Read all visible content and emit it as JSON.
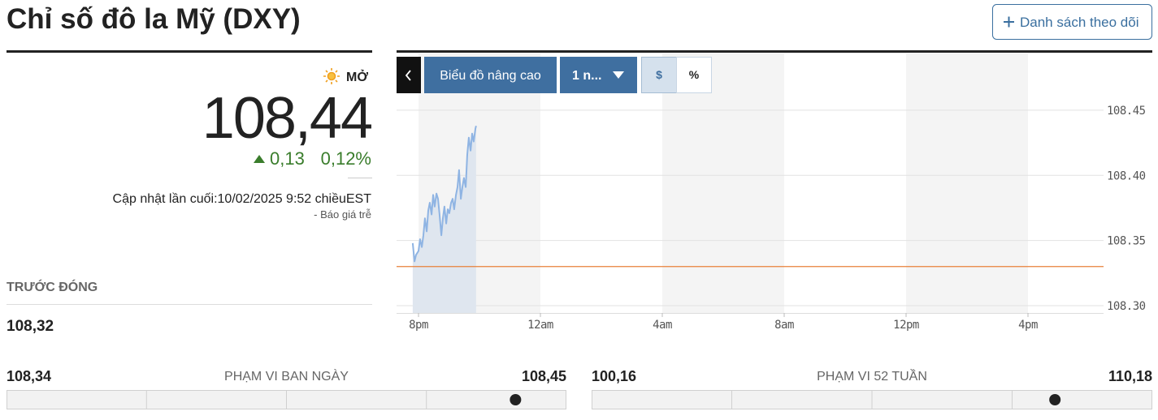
{
  "header": {
    "title": "Chỉ số đô la Mỹ (DXY)",
    "watchlist_button": "Danh sách theo dõi"
  },
  "quote": {
    "status": "MỞ",
    "price": {
      "value": 108.44,
      "label": "108,44"
    },
    "change": "0,13",
    "change_percent": "0,12%",
    "updated": "Cập nhật lần cuối:10/02/2025 9:52 chiềuEST",
    "delay_note": "-  Báo giá trễ",
    "previous_close_label": "TRƯỚC ĐÓNG",
    "previous_close": "108,32"
  },
  "toolbar": {
    "advanced": "Biểu đồ nâng cao",
    "period": "1 n...",
    "currency": "$",
    "percent": "%"
  },
  "chart_data": {
    "type": "line",
    "x": [
      -0.19,
      -0.13,
      -0.08,
      0,
      0.05,
      0.11,
      0.16,
      0.21,
      0.27,
      0.32,
      0.37,
      0.43,
      0.48,
      0.53,
      0.59,
      0.64,
      0.69,
      0.75,
      0.8,
      0.85,
      0.91,
      0.96,
      1.01,
      1.07,
      1.12,
      1.17,
      1.23,
      1.28,
      1.33,
      1.39,
      1.44,
      1.49,
      1.55,
      1.6,
      1.65,
      1.71,
      1.76,
      1.81,
      1.87,
      1.89
    ],
    "series": [
      {
        "color": "#8fb4e3",
        "values": [
          108.348,
          108.334,
          108.339,
          108.342,
          108.351,
          108.345,
          108.354,
          108.367,
          108.357,
          108.373,
          108.379,
          108.37,
          108.385,
          108.376,
          108.386,
          108.382,
          108.37,
          108.354,
          108.367,
          108.376,
          108.363,
          108.374,
          108.371,
          108.379,
          108.382,
          108.374,
          108.385,
          108.391,
          108.404,
          108.382,
          108.391,
          108.398,
          108.391,
          108.416,
          108.429,
          108.419,
          108.432,
          108.426,
          108.436,
          108.438
        ]
      }
    ],
    "reference_line": {
      "value": 108.33,
      "color": "#e8813a"
    },
    "xlim": [
      -0.72,
      22.48
    ],
    "xticks": [
      {
        "value": 0,
        "label": "8pm"
      },
      {
        "value": 4,
        "label": "12am"
      },
      {
        "value": 8,
        "label": "4am"
      },
      {
        "value": 12,
        "label": "8am"
      },
      {
        "value": 16,
        "label": "12pm"
      },
      {
        "value": 20,
        "label": "4pm"
      }
    ],
    "ylim": [
      108.2944,
      108.4935
    ],
    "yticks": [
      {
        "value": 108.3,
        "label": "108.30"
      },
      108.35,
      {
        "value": 108.4,
        "label": "108.40"
      },
      108.45
    ],
    "grid": true
  },
  "ranges": [
    {
      "low": {
        "value": 108.34,
        "label": "108,34"
      },
      "label": "PHẠM VI BAN NGÀY",
      "high": {
        "value": 108.45,
        "label": "108,45"
      }
    },
    {
      "low": {
        "value": 100.16,
        "label": "100,16"
      },
      "label": "PHẠM VI 52 TUẦN",
      "high": {
        "value": 110.18,
        "label": "110,18"
      }
    }
  ]
}
